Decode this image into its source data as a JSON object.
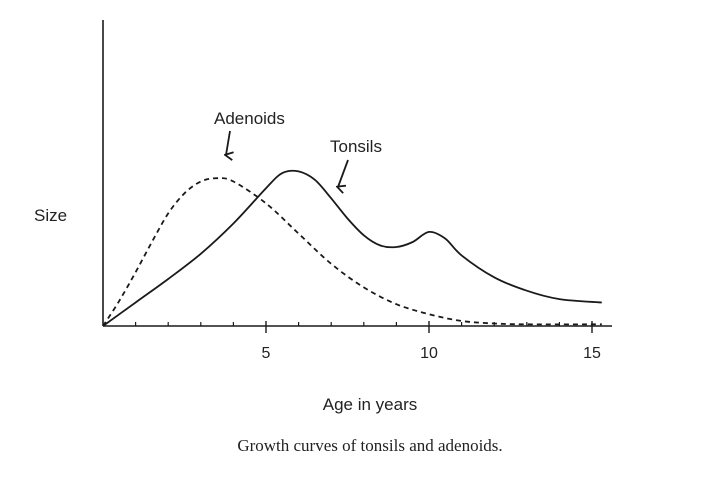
{
  "chart_data": {
    "type": "line",
    "caption": "Growth curves of tonsils and adenoids.",
    "xlabel": "Age in years",
    "ylabel": "Size",
    "xlim": [
      0,
      15.5
    ],
    "ylim": [
      0,
      10
    ],
    "x_ticks": [
      5,
      10,
      15
    ],
    "x_minor_step": 1,
    "grid": false,
    "legend": "none",
    "series": [
      {
        "name": "Tonsils",
        "style": "solid",
        "color": "#1a1a1a",
        "points": [
          [
            0,
            0
          ],
          [
            1,
            1.4
          ],
          [
            2,
            2.8
          ],
          [
            3,
            4.3
          ],
          [
            4,
            6.1
          ],
          [
            5,
            8.2
          ],
          [
            5.5,
            9.1
          ],
          [
            6,
            9.2
          ],
          [
            6.5,
            8.7
          ],
          [
            7,
            7.6
          ],
          [
            7.5,
            6.4
          ],
          [
            8,
            5.4
          ],
          [
            8.5,
            4.8
          ],
          [
            9,
            4.7
          ],
          [
            9.5,
            5.0
          ],
          [
            10,
            5.6
          ],
          [
            10.5,
            5.2
          ],
          [
            11,
            4.2
          ],
          [
            12,
            2.9
          ],
          [
            13,
            2.1
          ],
          [
            14,
            1.6
          ],
          [
            15.3,
            1.4
          ]
        ]
      },
      {
        "name": "Adenoids",
        "style": "dashed",
        "color": "#1a1a1a",
        "points": [
          [
            0,
            0
          ],
          [
            0.5,
            1.5
          ],
          [
            1,
            3.2
          ],
          [
            1.5,
            5.0
          ],
          [
            2,
            6.7
          ],
          [
            2.5,
            7.9
          ],
          [
            3,
            8.6
          ],
          [
            3.5,
            8.8
          ],
          [
            4,
            8.6
          ],
          [
            5,
            7.3
          ],
          [
            6,
            5.5
          ],
          [
            7,
            3.7
          ],
          [
            8,
            2.3
          ],
          [
            9,
            1.3
          ],
          [
            10,
            0.7
          ],
          [
            11,
            0.3
          ],
          [
            12,
            0.15
          ],
          [
            13,
            0.1
          ],
          [
            15.3,
            0.1
          ]
        ]
      }
    ],
    "annotations": [
      {
        "text": "Adenoids",
        "series": "Adenoids",
        "arrow_to": [
          3.6,
          8.8
        ]
      },
      {
        "text": "Tonsils",
        "series": "Tonsils",
        "arrow_to": [
          7.2,
          7.2
        ]
      }
    ]
  }
}
